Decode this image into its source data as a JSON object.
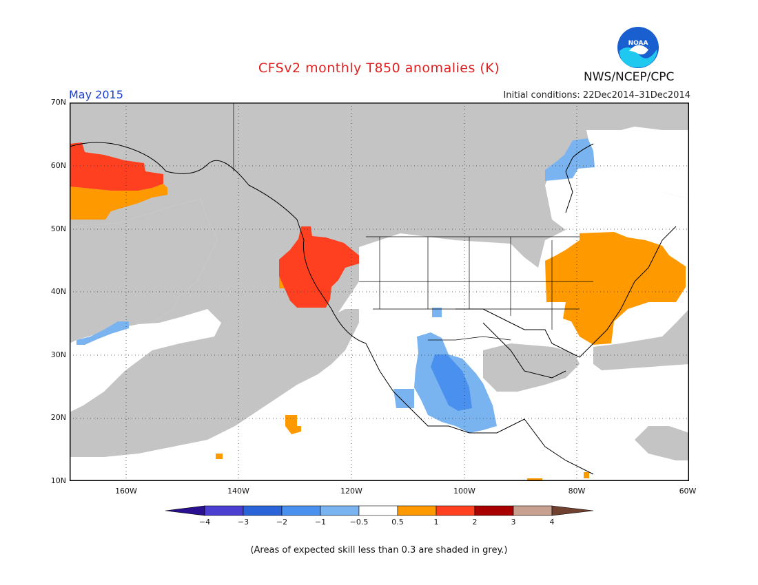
{
  "title": "CFSv2 monthly T850 anomalies (K)",
  "period": "May 2015",
  "initial_conditions": "Initial conditions: 22Dec2014–31Dec2014",
  "agency": "NWS/NCEP/CPC",
  "logo_text": "NOAA",
  "footnote": "(Areas of expected skill less than 0.3 are shaded in grey.)",
  "axes": {
    "lat_labels": [
      "70N",
      "60N",
      "50N",
      "40N",
      "30N",
      "20N",
      "10N"
    ],
    "lon_labels": [
      "160W",
      "140W",
      "120W",
      "100W",
      "80W",
      "60W"
    ]
  },
  "colorbar": {
    "tick_labels": [
      "−4",
      "−3",
      "−2",
      "−1",
      "−0.5",
      "0.5",
      "1",
      "2",
      "3",
      "4"
    ],
    "colors": {
      "lt_-4": "#2a1090",
      "-4_-3": "#4a3fd0",
      "-3_-2": "#2a64d8",
      "-2_-1": "#4a90ee",
      "-1_-0.5": "#7ab4f0",
      "-0.5_0.5": "#ffffff",
      "0.5_1": "#ff9900",
      "1_2": "#ff4020",
      "2_3": "#a80000",
      "3_4": "#c8a090",
      "gt_4": "#704030"
    }
  },
  "colors": {
    "grey_low_skill": "#c4c4c4",
    "white": "#ffffff",
    "orange": "#ff9900",
    "red": "#ff4020",
    "light_blue": "#7ab4f0",
    "mid_blue": "#4a90ee",
    "title": "#e01e1e",
    "period": "#1a3fd0"
  }
}
